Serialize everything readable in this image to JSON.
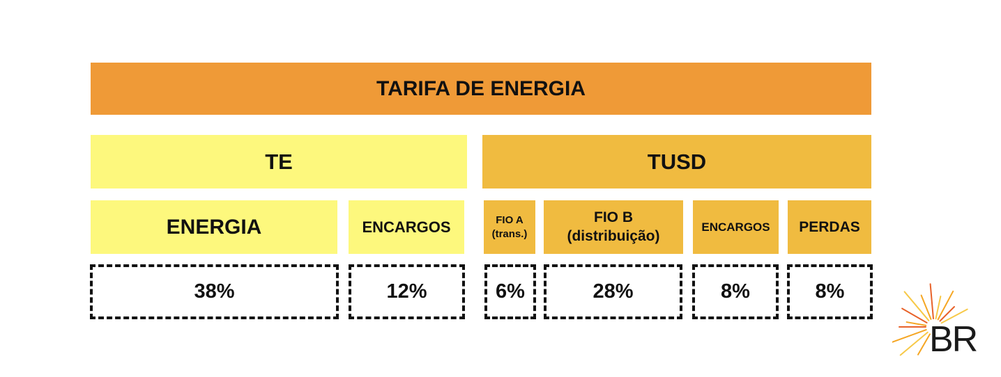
{
  "title": "TARIFA DE ENERGIA",
  "groups": {
    "te": "TE",
    "tusd": "TUSD"
  },
  "components": [
    {
      "line1": "ENERGIA",
      "line2": "",
      "value": "38%"
    },
    {
      "line1": "ENCARGOS",
      "line2": "",
      "value": "12%"
    },
    {
      "line1": "FIO A",
      "line2": "(trans.)",
      "value": "6%"
    },
    {
      "line1": "FIO B",
      "line2": "(distribuição)",
      "value": "28%"
    },
    {
      "line1": "ENCARGOS",
      "line2": "",
      "value": "8%"
    },
    {
      "line1": "PERDAS",
      "line2": "",
      "value": "8%"
    }
  ],
  "logo": {
    "text": "BR",
    "colors": [
      "#f5a623",
      "#e8622a",
      "#f7c948"
    ]
  }
}
